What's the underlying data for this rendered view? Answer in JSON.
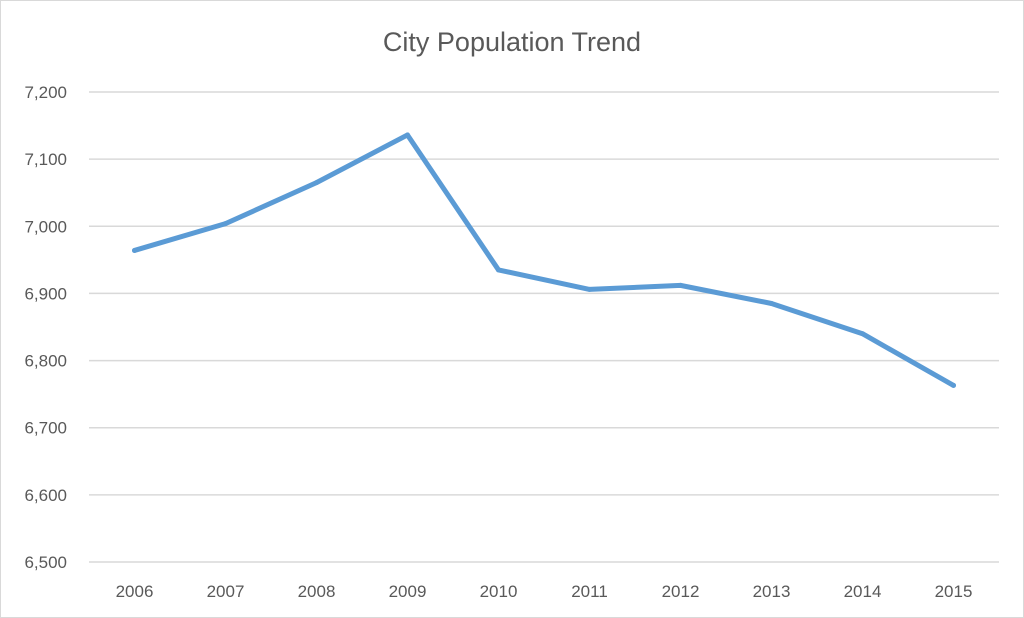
{
  "chart_data": {
    "type": "line",
    "title": "City Population Trend",
    "xlabel": "",
    "ylabel": "",
    "categories": [
      "2006",
      "2007",
      "2008",
      "2009",
      "2010",
      "2011",
      "2012",
      "2013",
      "2014",
      "2015"
    ],
    "series": [
      {
        "values": [
          6964,
          7004,
          7065,
          7136,
          6935,
          6906,
          6912,
          6885,
          6840,
          6763
        ],
        "color": "#5B9BD5"
      }
    ],
    "ylim": [
      6500,
      7200
    ],
    "yticks": [
      6500,
      6600,
      6700,
      6800,
      6900,
      7000,
      7100,
      7200
    ],
    "ytick_labels": [
      "6,500",
      "6,600",
      "6,700",
      "6,800",
      "6,900",
      "7,000",
      "7,100",
      "7,200"
    ],
    "grid": true,
    "legend": "none"
  }
}
